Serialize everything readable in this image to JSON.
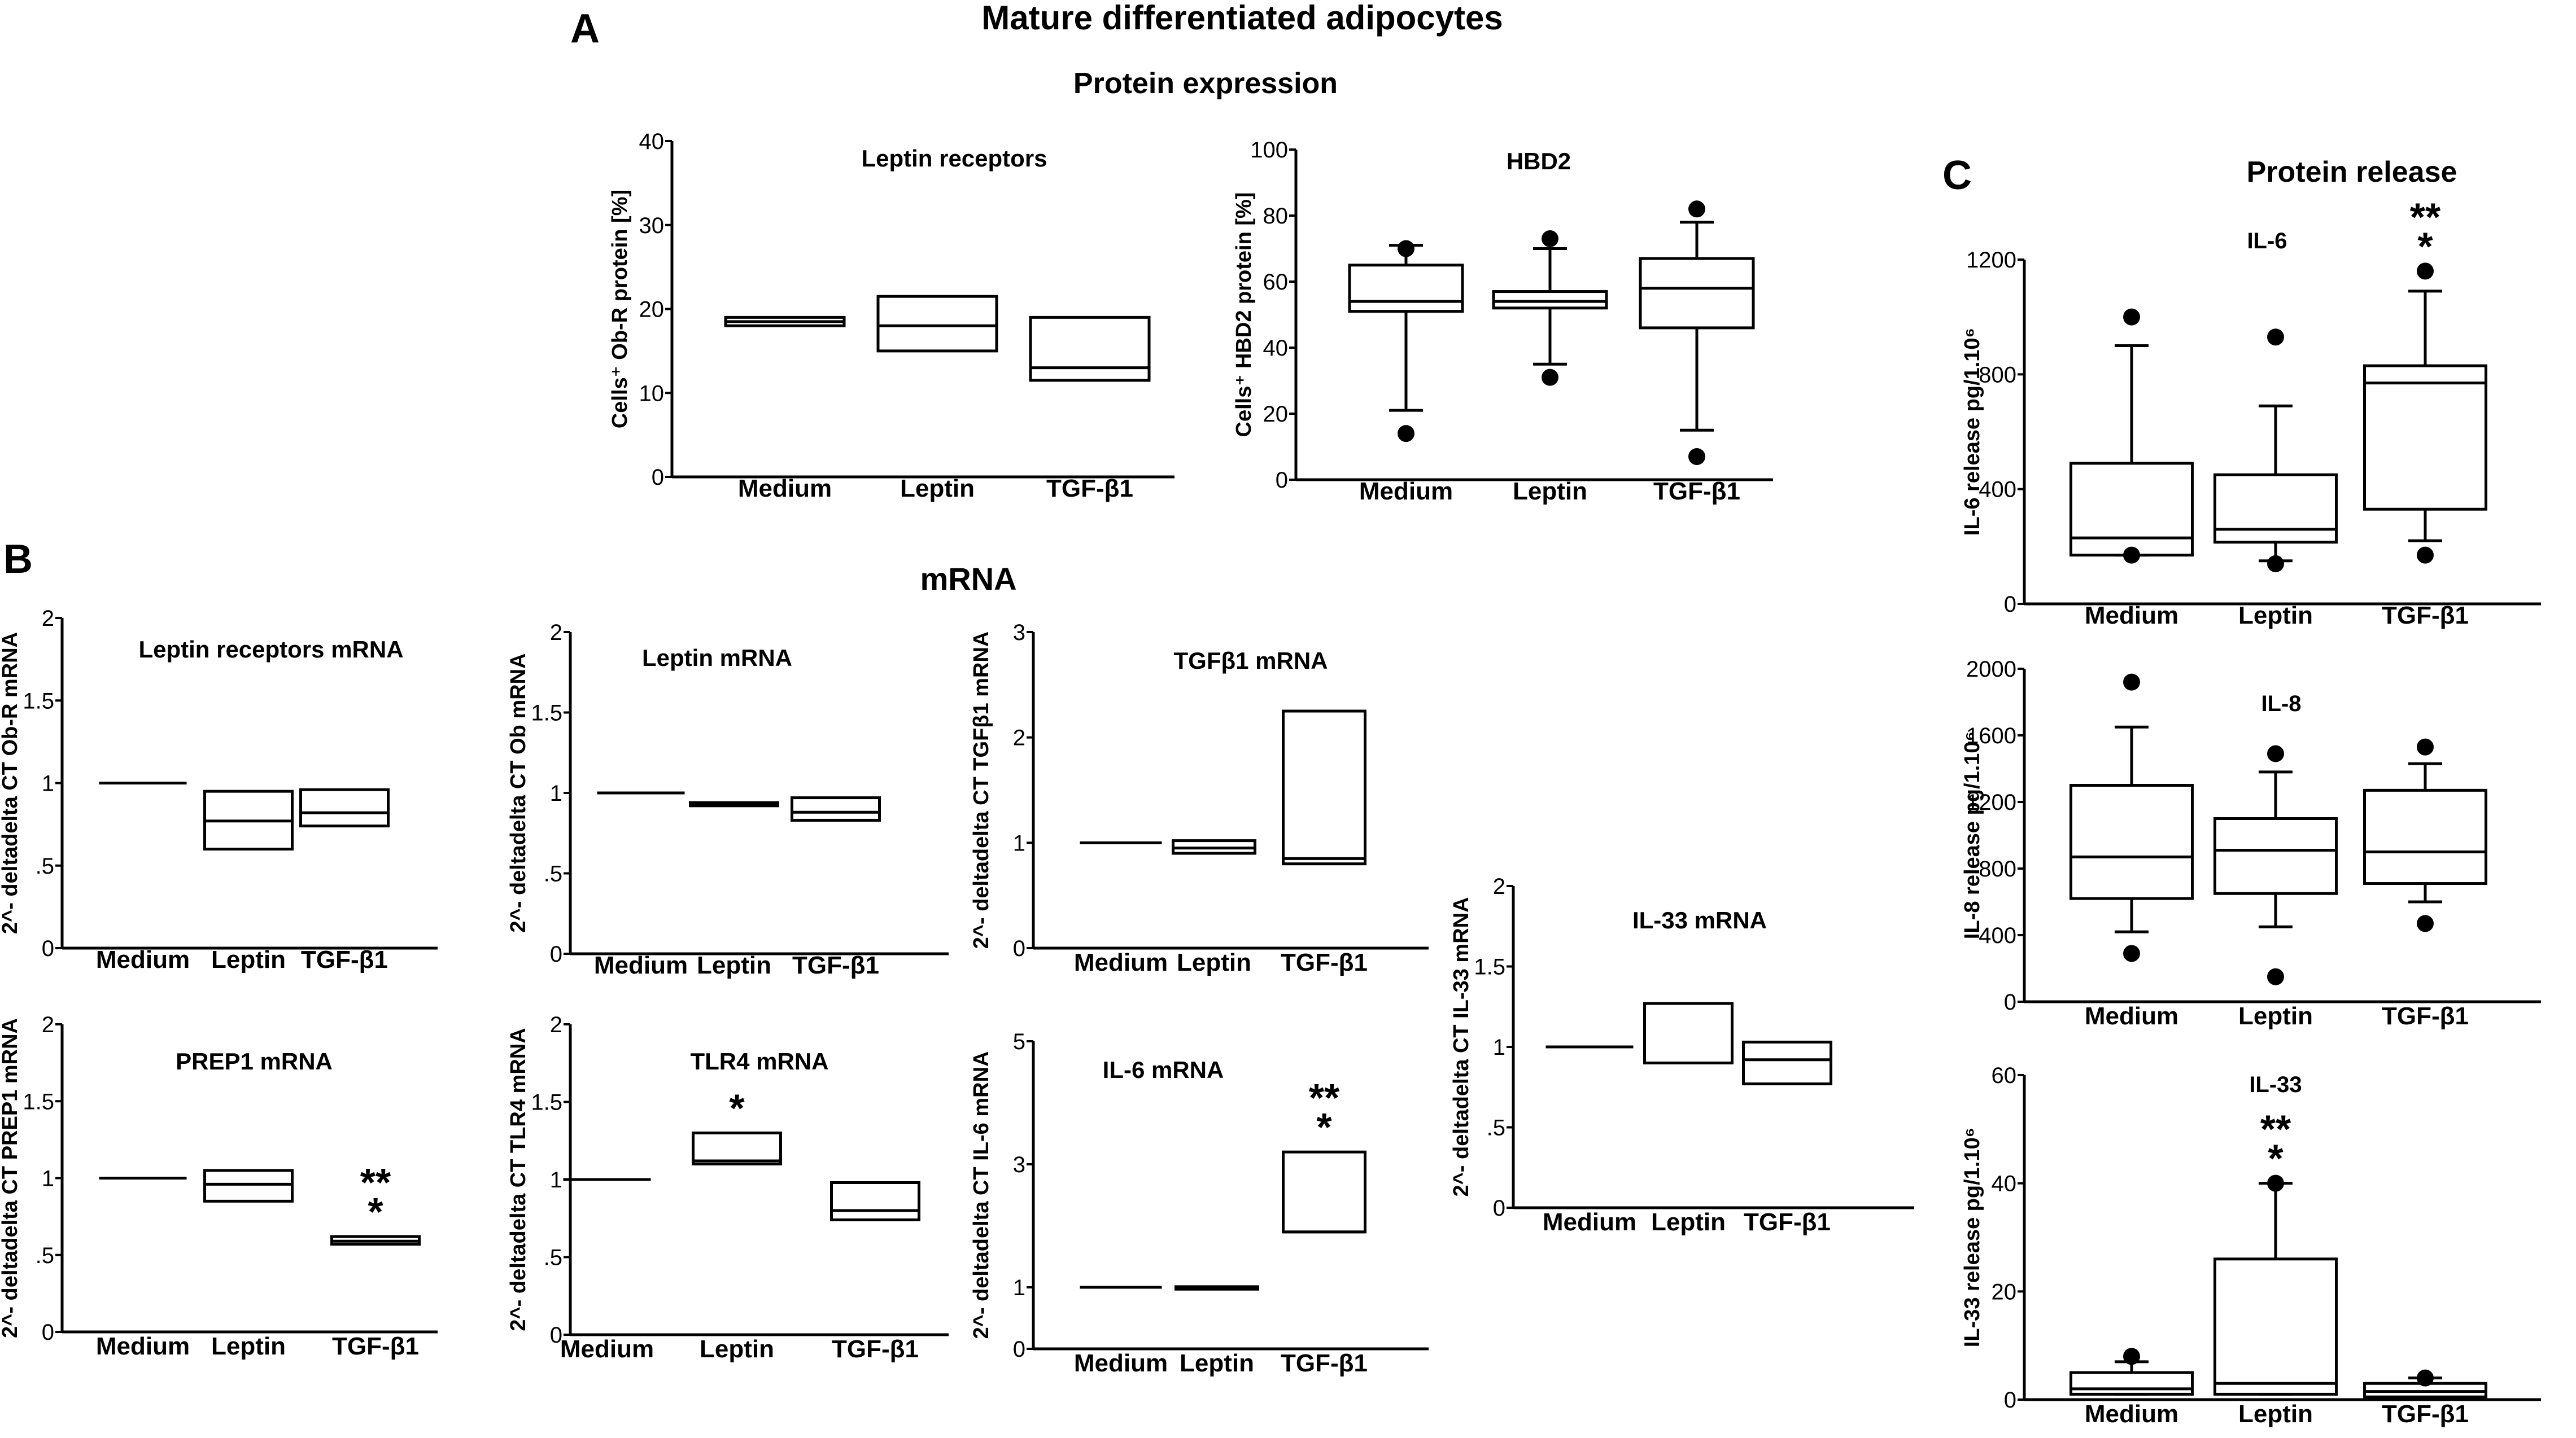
{
  "figure": {
    "title": "Mature differentiated adipocytes",
    "subtitle_protein": "Protein expression",
    "subtitle_mrna": "mRNA",
    "subtitle_release": "Protein release",
    "panel_labels": [
      "A",
      "B",
      "C"
    ]
  },
  "chart_data": [
    {
      "id": "leptin-receptors-protein",
      "type": "box",
      "title": "Leptin receptors",
      "ylabel": "Cells⁺ Ob-R protein [%]",
      "categories": [
        "Medium",
        "Leptin",
        "TGF-β1"
      ],
      "ylim": [
        0,
        40
      ],
      "yticks": [
        "0",
        "10",
        "20",
        "30",
        "40"
      ],
      "boxes": [
        {
          "q1": 18.0,
          "median": 18.5,
          "q3": 19.0
        },
        {
          "q1": 15.0,
          "median": 18.0,
          "q3": 21.5
        },
        {
          "q1": 11.5,
          "median": 13.0,
          "q3": 19.0
        }
      ]
    },
    {
      "id": "hbd2-protein",
      "type": "box",
      "title": "HBD2",
      "ylabel": "Cells⁺ HBD2 protein [%]",
      "categories": [
        "Medium",
        "Leptin",
        "TGF-β1"
      ],
      "ylim": [
        0,
        100
      ],
      "yticks": [
        "0",
        "20",
        "40",
        "60",
        "80",
        "100"
      ],
      "boxes": [
        {
          "q1": 51,
          "median": 54,
          "q3": 65,
          "whisker_low": 21,
          "whisker_high": 71,
          "outliers": [
            70,
            14
          ]
        },
        {
          "q1": 52,
          "median": 54,
          "q3": 57,
          "whisker_low": 35,
          "whisker_high": 70,
          "outliers": [
            73,
            31
          ]
        },
        {
          "q1": 46,
          "median": 58,
          "q3": 67,
          "whisker_low": 15,
          "whisker_high": 78,
          "outliers": [
            82,
            7
          ]
        }
      ]
    },
    {
      "id": "leptin-receptors-mrna",
      "type": "box",
      "title": "Leptin receptors mRNA",
      "ylabel": "2^- deltadelta CT Ob-R mRNA",
      "categories": [
        "Medium",
        "Leptin",
        "TGF-β1"
      ],
      "ylim": [
        0,
        2
      ],
      "yticks": [
        "0",
        ".5",
        "1",
        "1.5",
        "2"
      ],
      "boxes": [
        {
          "q1": 1.0,
          "median": 1.0,
          "q3": 1.0
        },
        {
          "q1": 0.6,
          "median": 0.77,
          "q3": 0.95
        },
        {
          "q1": 0.74,
          "median": 0.82,
          "q3": 0.96
        }
      ]
    },
    {
      "id": "leptin-mrna",
      "type": "box",
      "title": "Leptin mRNA",
      "ylabel": "2^- deltadelta CT Ob mRNA",
      "categories": [
        "Medium",
        "Leptin",
        "TGF-β1"
      ],
      "ylim": [
        0,
        2
      ],
      "yticks": [
        "0",
        ".5",
        "1",
        "1.5",
        "2"
      ],
      "boxes": [
        {
          "q1": 1.0,
          "median": 1.0,
          "q3": 1.0
        },
        {
          "q1": 0.92,
          "median": 0.93,
          "q3": 0.94
        },
        {
          "q1": 0.83,
          "median": 0.88,
          "q3": 0.97
        }
      ]
    },
    {
      "id": "tgfb1-mrna",
      "type": "box",
      "title": "TGFβ1 mRNA",
      "ylabel": "2^- deltadelta CT TGFβ1 mRNA",
      "categories": [
        "Medium",
        "Leptin",
        "TGF-β1"
      ],
      "ylim": [
        0,
        3
      ],
      "yticks": [
        "0",
        "1",
        "2",
        "3"
      ],
      "boxes": [
        {
          "q1": 1.0,
          "median": 1.0,
          "q3": 1.0
        },
        {
          "q1": 0.9,
          "median": 0.95,
          "q3": 1.02
        },
        {
          "q1": 0.8,
          "median": 0.85,
          "q3": 2.25
        }
      ]
    },
    {
      "id": "il33-mrna",
      "type": "box",
      "title": "IL-33 mRNA",
      "ylabel": "2^- deltadelta CT IL-33 mRNA",
      "categories": [
        "Medium",
        "Leptin",
        "TGF-β1"
      ],
      "ylim": [
        0,
        2
      ],
      "yticks": [
        "0",
        ".5",
        "1",
        "1.5",
        "2"
      ],
      "boxes": [
        {
          "q1": 1.0,
          "median": 1.0,
          "q3": 1.0
        },
        {
          "q1": 0.9,
          "median": 0.9,
          "q3": 1.27
        },
        {
          "q1": 0.77,
          "median": 0.92,
          "q3": 1.03
        }
      ]
    },
    {
      "id": "prep1-mrna",
      "type": "box",
      "title": "PREP1 mRNA",
      "ylabel": "2^- deltadelta CT PREP1 mRNA",
      "categories": [
        "Medium",
        "Leptin",
        "TGF-β1"
      ],
      "ylim": [
        0,
        2
      ],
      "yticks": [
        "0",
        ".5",
        "1",
        "1.5",
        "2"
      ],
      "boxes": [
        {
          "q1": 1.0,
          "median": 1.0,
          "q3": 1.0
        },
        {
          "q1": 0.85,
          "median": 0.96,
          "q3": 1.05
        },
        {
          "q1": 0.57,
          "median": 0.59,
          "q3": 0.62,
          "annotation": [
            "**",
            "*"
          ]
        }
      ]
    },
    {
      "id": "tlr4-mrna",
      "type": "box",
      "title": "TLR4 mRNA",
      "ylabel": "2^- deltadelta CT TLR4 mRNA",
      "categories": [
        "Medium",
        "Leptin",
        "TGF-β1"
      ],
      "ylim": [
        0,
        2
      ],
      "yticks": [
        "0",
        ".5",
        "1",
        "1.5",
        "2"
      ],
      "boxes": [
        {
          "q1": 1.0,
          "median": 1.0,
          "q3": 1.0
        },
        {
          "q1": 1.1,
          "median": 1.12,
          "q3": 1.3,
          "annotation": [
            "*"
          ]
        },
        {
          "q1": 0.74,
          "median": 0.8,
          "q3": 0.98
        }
      ]
    },
    {
      "id": "il6-mrna",
      "type": "box",
      "title": "IL-6 mRNA",
      "ylabel": "2^- deltadelta CT IL-6 mRNA",
      "categories": [
        "Medium",
        "Leptin",
        "TGF-β1"
      ],
      "ylim": [
        0,
        5
      ],
      "yticks": [
        "0",
        "1",
        "3",
        "5"
      ],
      "ytick_values": [
        0,
        1,
        3,
        5
      ],
      "boxes": [
        {
          "q1": 1.0,
          "median": 1.0,
          "q3": 1.0
        },
        {
          "q1": 0.97,
          "median": 0.99,
          "q3": 1.01
        },
        {
          "q1": 1.9,
          "median": 1.9,
          "q3": 3.2,
          "annotation": [
            "**",
            "*"
          ]
        }
      ]
    },
    {
      "id": "il6-release",
      "type": "box",
      "title": "IL-6",
      "ylabel": "IL-6 release pg/1.10⁶",
      "categories": [
        "Medium",
        "Leptin",
        "TGF-β1"
      ],
      "ylim": [
        0,
        1200
      ],
      "yticks": [
        "0",
        "400",
        "800",
        "1200"
      ],
      "ytick_values": [
        0,
        400,
        800,
        1200
      ],
      "boxes": [
        {
          "q1": 170,
          "median": 230,
          "q3": 490,
          "whisker_low": 170,
          "whisker_high": 900,
          "outliers": [
            1000,
            170
          ]
        },
        {
          "q1": 215,
          "median": 260,
          "q3": 450,
          "whisker_low": 150,
          "whisker_high": 690,
          "outliers": [
            930,
            140
          ]
        },
        {
          "q1": 330,
          "median": 770,
          "q3": 830,
          "whisker_low": 220,
          "whisker_high": 1090,
          "outliers": [
            1160,
            170
          ],
          "annotation": [
            "**",
            "*"
          ]
        }
      ]
    },
    {
      "id": "il8-release",
      "type": "box",
      "title": "IL-8",
      "ylabel": "IL-8 release pg/1.10⁶",
      "categories": [
        "Medium",
        "Leptin",
        "TGF-β1"
      ],
      "ylim": [
        0,
        2000
      ],
      "yticks": [
        "0",
        "400",
        "800",
        "1200",
        "1600",
        "2000"
      ],
      "boxes": [
        {
          "q1": 620,
          "median": 870,
          "q3": 1300,
          "whisker_low": 420,
          "whisker_high": 1650,
          "outliers": [
            1920,
            290
          ]
        },
        {
          "q1": 650,
          "median": 910,
          "q3": 1100,
          "whisker_low": 450,
          "whisker_high": 1380,
          "outliers": [
            1490,
            150
          ]
        },
        {
          "q1": 710,
          "median": 900,
          "q3": 1270,
          "whisker_low": 600,
          "whisker_high": 1430,
          "outliers": [
            1530,
            470
          ]
        }
      ]
    },
    {
      "id": "il33-release",
      "type": "box",
      "title": "IL-33",
      "ylabel": "IL-33 release pg/1.10⁶",
      "categories": [
        "Medium",
        "Leptin",
        "TGF-β1"
      ],
      "ylim": [
        0,
        60
      ],
      "yticks": [
        "0",
        "20",
        "40",
        "60"
      ],
      "ytick_values": [
        0,
        20,
        40,
        60
      ],
      "boxes": [
        {
          "q1": 1,
          "median": 2,
          "q3": 5,
          "whisker_low": 1,
          "whisker_high": 7,
          "outliers": [
            8
          ]
        },
        {
          "q1": 1,
          "median": 3,
          "q3": 26,
          "whisker_low": 1,
          "whisker_high": 40,
          "outliers": [
            40
          ],
          "annotation": [
            "**",
            "*"
          ]
        },
        {
          "q1": 0.5,
          "median": 1.5,
          "q3": 3,
          "whisker_low": 0.5,
          "whisker_high": 4,
          "outliers": [
            4
          ]
        }
      ]
    }
  ]
}
